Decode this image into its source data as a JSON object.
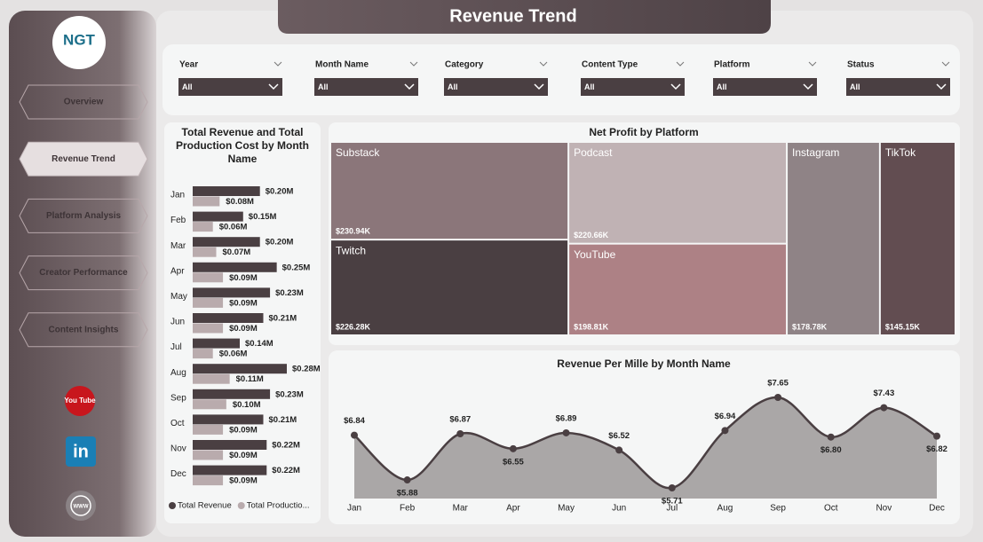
{
  "header": {
    "title": "Revenue Trend",
    "logo": "NGT"
  },
  "nav": {
    "items": [
      "Overview",
      "Revenue Trend",
      "Platform Analysis",
      "Creator Performance",
      "Content Insights"
    ],
    "active": 1
  },
  "social": [
    "You Tube",
    "in",
    "WWW"
  ],
  "filters": [
    {
      "label": "Year",
      "value": "All"
    },
    {
      "label": "Month Name",
      "value": "All"
    },
    {
      "label": "Category",
      "value": "All"
    },
    {
      "label": "Content Type",
      "value": "All"
    },
    {
      "label": "Platform",
      "value": "All"
    },
    {
      "label": "Status",
      "value": "All"
    }
  ],
  "chart_data": [
    {
      "type": "hbar",
      "title": "Total Revenue and Total Production Cost by Month Name",
      "categories": [
        "Jan",
        "Feb",
        "Mar",
        "Apr",
        "May",
        "Jun",
        "Jul",
        "Aug",
        "Sep",
        "Oct",
        "Nov",
        "Dec"
      ],
      "series": [
        {
          "name": "Total Revenue",
          "color": "#4a3f42",
          "values": [
            0.2,
            0.15,
            0.2,
            0.25,
            0.23,
            0.21,
            0.14,
            0.28,
            0.23,
            0.21,
            0.22,
            0.22
          ],
          "value_labels": [
            "$0.20M",
            "$0.15M",
            "$0.20M",
            "$0.25M",
            "$0.23M",
            "$0.21M",
            "$0.14M",
            "$0.28M",
            "$0.23M",
            "$0.21M",
            "$0.22M",
            "$0.22M"
          ]
        },
        {
          "name": "Total Productio...",
          "color": "#b9abad",
          "values": [
            0.08,
            0.06,
            0.07,
            0.09,
            0.09,
            0.09,
            0.06,
            0.11,
            0.1,
            0.09,
            0.09,
            0.09
          ],
          "value_labels": [
            "$0.08M",
            "$0.06M",
            "$0.07M",
            "$0.09M",
            "$0.09M",
            "$0.09M",
            "$0.06M",
            "$0.11M",
            "$0.10M",
            "$0.09M",
            "$0.09M",
            "$0.09M"
          ]
        }
      ]
    },
    {
      "type": "treemap",
      "title": "Net Profit by Platform",
      "categories": [
        "Substack",
        "Twitch",
        "Podcast",
        "YouTube",
        "Instagram",
        "TikTok"
      ],
      "values": [
        230.94,
        226.28,
        220.66,
        198.81,
        178.78,
        145.15
      ],
      "value_labels": [
        "$230.94K",
        "$226.28K",
        "$220.66K",
        "$198.81K",
        "$178.78K",
        "$145.15K"
      ],
      "colors": [
        "#8b767a",
        "#4a3f42",
        "#c0b2b4",
        "#ad8185",
        "#8f8386",
        "#624d51"
      ]
    },
    {
      "type": "area",
      "title": "Revenue Per Mille by Month Name",
      "categories": [
        "Jan",
        "Feb",
        "Mar",
        "Apr",
        "May",
        "Jun",
        "Jul",
        "Aug",
        "Sep",
        "Oct",
        "Nov",
        "Dec"
      ],
      "values": [
        6.84,
        5.88,
        6.87,
        6.55,
        6.89,
        6.52,
        5.71,
        6.94,
        7.65,
        6.8,
        7.43,
        6.82
      ],
      "value_labels": [
        "$6.84",
        "$5.88",
        "$6.87",
        "$6.55",
        "$6.89",
        "$6.52",
        "$5.71",
        "$6.94",
        "$7.65",
        "$6.80",
        "$7.43",
        "$6.82"
      ],
      "color": "#4a3f42",
      "fill": "#aaa7a7"
    }
  ]
}
